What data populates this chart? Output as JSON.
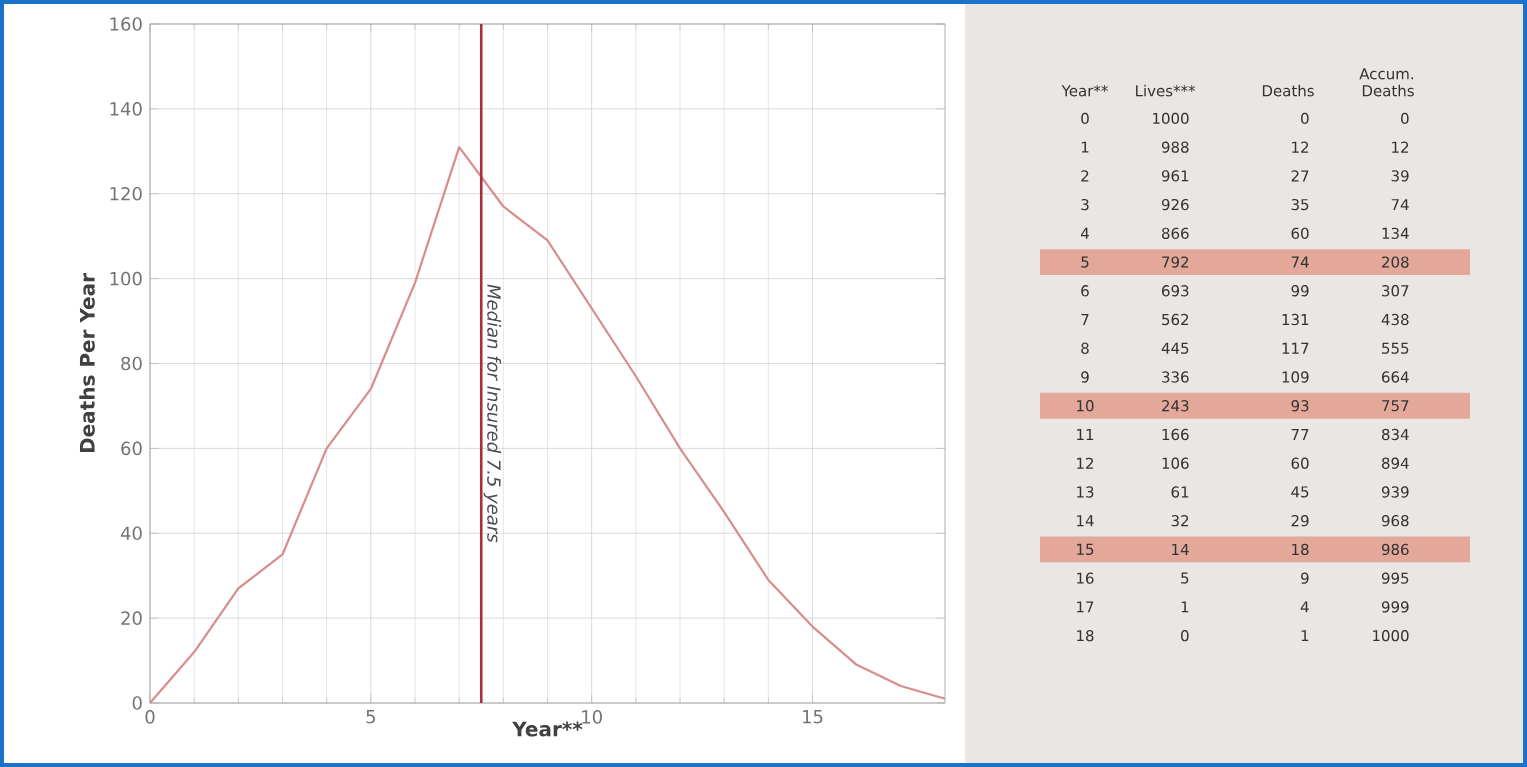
{
  "chart_data": [
    {
      "type": "line",
      "xlabel": "Year**",
      "ylabel": "Deaths Per Year",
      "x": [
        0,
        1,
        2,
        3,
        4,
        5,
        6,
        7,
        8,
        9,
        10,
        11,
        12,
        13,
        14,
        15,
        16,
        17,
        18
      ],
      "series": [
        {
          "color": "#d98c8c",
          "values": [
            0,
            12,
            27,
            35,
            60,
            74,
            99,
            131,
            117,
            109,
            93,
            77,
            60,
            45,
            29,
            18,
            9,
            4,
            1
          ]
        }
      ],
      "xlim": [
        0,
        18
      ],
      "xticks": [
        0,
        5,
        10,
        15
      ],
      "ylim": [
        0,
        160
      ],
      "yticks": [
        0,
        20,
        40,
        60,
        80,
        100,
        120,
        140,
        160
      ],
      "grid": true,
      "marker": "none",
      "ref_lines": [
        {
          "axis": "x",
          "value": 7.5,
          "label": "Median for Insured 7.5 years",
          "color": "#a8303a"
        }
      ]
    },
    {
      "type": "other",
      "ylabel": "Year**",
      "categories": [
        "Lives***",
        "Deaths",
        "Accum. Deaths"
      ],
      "y_categories": [
        "0",
        "1",
        "2",
        "3",
        "4",
        "5",
        "6",
        "7",
        "8",
        "9",
        "10",
        "11",
        "12",
        "13",
        "14",
        "15",
        "16",
        "17",
        "18"
      ],
      "cells": [
        [
          "1000",
          "0",
          "0"
        ],
        [
          "988",
          "12",
          "12"
        ],
        [
          "961",
          "27",
          "39"
        ],
        [
          "926",
          "35",
          "74"
        ],
        [
          "866",
          "60",
          "134"
        ],
        [
          "792",
          "74",
          "208"
        ],
        [
          "693",
          "99",
          "307"
        ],
        [
          "562",
          "131",
          "438"
        ],
        [
          "445",
          "117",
          "555"
        ],
        [
          "336",
          "109",
          "664"
        ],
        [
          "243",
          "93",
          "757"
        ],
        [
          "166",
          "77",
          "834"
        ],
        [
          "106",
          "60",
          "894"
        ],
        [
          "61",
          "45",
          "939"
        ],
        [
          "32",
          "29",
          "968"
        ],
        [
          "14",
          "18",
          "986"
        ],
        [
          "5",
          "9",
          "995"
        ],
        [
          "1",
          "4",
          "999"
        ],
        [
          "0",
          "1",
          "1000"
        ]
      ],
      "bands": [
        {
          "axis": "y",
          "from": "5",
          "color": "#e3a899"
        },
        {
          "axis": "y",
          "from": "10",
          "color": "#e3a899"
        },
        {
          "axis": "y",
          "from": "15",
          "color": "#e3a899"
        }
      ]
    }
  ]
}
